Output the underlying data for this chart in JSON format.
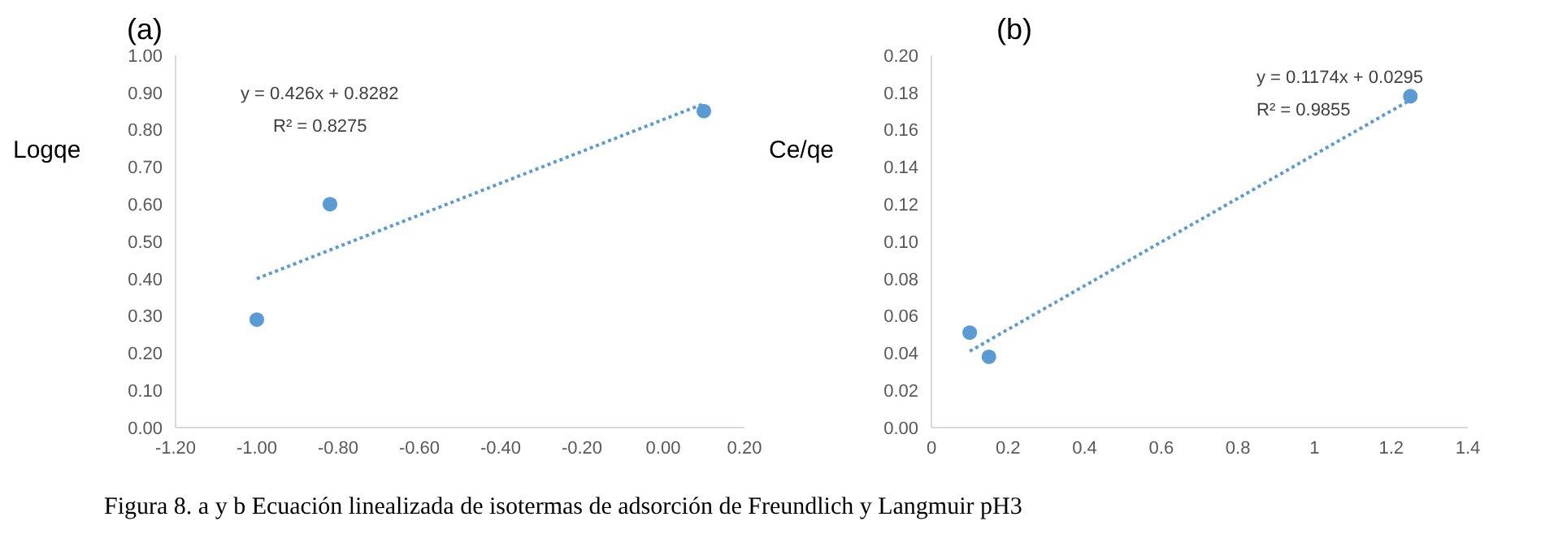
{
  "chart_data": [
    {
      "type": "scatter",
      "title": "(a)",
      "ylabel": "Logqe",
      "xlim": [
        -1.2,
        0.2
      ],
      "xticks": [
        {
          "value": -1.2,
          "label": "-1.20"
        },
        {
          "value": -1.0,
          "label": "-1.00"
        },
        {
          "value": -0.8,
          "label": "-0.80"
        },
        {
          "value": -0.6,
          "label": "-0.60"
        },
        {
          "value": -0.4,
          "label": "-0.40"
        },
        {
          "value": -0.2,
          "label": "-0.20"
        },
        {
          "value": 0,
          "label": "0.00"
        },
        {
          "value": 0.2,
          "label": "0.20"
        }
      ],
      "ylim": [
        0,
        1
      ],
      "yticks": [
        {
          "value": 0,
          "label": "0.00"
        },
        {
          "value": 0.1,
          "label": "0.10"
        },
        {
          "value": 0.2,
          "label": "0.20"
        },
        {
          "value": 0.3,
          "label": "0.30"
        },
        {
          "value": 0.4,
          "label": "0.40"
        },
        {
          "value": 0.5,
          "label": "0.50"
        },
        {
          "value": 0.6,
          "label": "0.60"
        },
        {
          "value": 0.7,
          "label": "0.70"
        },
        {
          "value": 0.8,
          "label": "0.80"
        },
        {
          "value": 0.9,
          "label": "0.90"
        },
        {
          "value": 1,
          "label": "1.00"
        }
      ],
      "grid": false,
      "legend": false,
      "series": [
        {
          "type": "scatter",
          "color": "#5b9bd5",
          "marker": "circle",
          "x": [
            -1.0,
            -0.82,
            0.1
          ],
          "values": [
            0.29,
            0.6,
            0.85
          ]
        },
        {
          "type": "line",
          "color": "#5b9bd5",
          "marker": "none",
          "line_style": "dotted",
          "x": [
            -1.0,
            0.1
          ],
          "values": [
            0.4,
            0.87
          ]
        }
      ],
      "annotations": [
        "y = 0.426x + 0.8282",
        "R² = 0.8275",
        "Figura 8. a y b Ecuación linealizada de isotermas de adsorción de Freundlich y Langmuir pH3"
      ]
    },
    {
      "type": "scatter",
      "title": "(b)",
      "ylabel": "Ce/qe",
      "xlim": [
        0,
        1.4
      ],
      "xticks": [
        0,
        0.2,
        0.4,
        0.6,
        0.8,
        1,
        1.2,
        1.4
      ],
      "ylim": [
        0,
        0.2
      ],
      "yticks": [
        {
          "value": 0,
          "label": "0.00"
        },
        {
          "value": 0.02,
          "label": "0.02"
        },
        {
          "value": 0.04,
          "label": "0.04"
        },
        {
          "value": 0.06,
          "label": "0.06"
        },
        {
          "value": 0.08,
          "label": "0.08"
        },
        {
          "value": 0.1,
          "label": "0.10"
        },
        {
          "value": 0.12,
          "label": "0.12"
        },
        {
          "value": 0.14,
          "label": "0.14"
        },
        {
          "value": 0.16,
          "label": "0.16"
        },
        {
          "value": 0.18,
          "label": "0.18"
        },
        {
          "value": 0.2,
          "label": "0.20"
        }
      ],
      "grid": false,
      "legend": false,
      "series": [
        {
          "type": "scatter",
          "color": "#5b9bd5",
          "marker": "circle",
          "x": [
            0.1,
            0.15,
            1.25
          ],
          "values": [
            0.051,
            0.038,
            0.178
          ]
        },
        {
          "type": "line",
          "color": "#5b9bd5",
          "marker": "none",
          "line_style": "dotted",
          "x": [
            0.1,
            1.25
          ],
          "values": [
            0.041,
            0.176
          ]
        }
      ],
      "annotations": [
        "y = 0.1174x + 0.0295",
        "R² = 0.9855"
      ]
    }
  ]
}
